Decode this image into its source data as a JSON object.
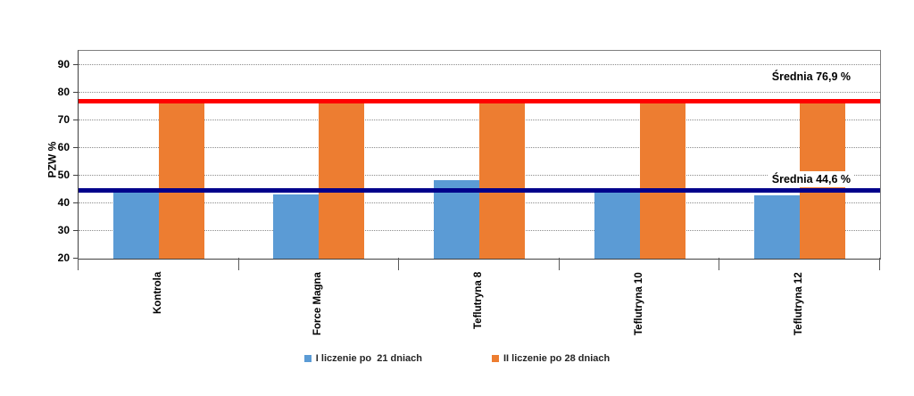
{
  "chart_data": {
    "type": "bar",
    "title": "",
    "xlabel": "",
    "ylabel": "PZW %",
    "categories": [
      "Kontrola",
      "Force Magna",
      "Teflutryna 8",
      "Teflutryna 10",
      "Teflutryna 12"
    ],
    "series": [
      {
        "name": "I liczenie po  21 dniach",
        "color": "#5B9BD5",
        "values": [
          44.7,
          43.2,
          48.2,
          44.0,
          42.9
        ]
      },
      {
        "name": "II liczenie po 28 dniach",
        "color": "#ED7D31",
        "values": [
          76.4,
          77.7,
          77.7,
          76.4,
          76.3
        ]
      }
    ],
    "yticks": [
      20,
      30,
      40,
      50,
      60,
      70,
      80,
      90
    ],
    "ylim": [
      20,
      95
    ],
    "grid": "horizontal-dotted",
    "legend_position": "bottom-center",
    "reference_lines": [
      {
        "label": "Średnia 76,9 %",
        "value": 76.9,
        "color": "#FF0000"
      },
      {
        "label": "Średnia 44,6 %",
        "value": 44.6,
        "color": "#00008B"
      }
    ]
  }
}
